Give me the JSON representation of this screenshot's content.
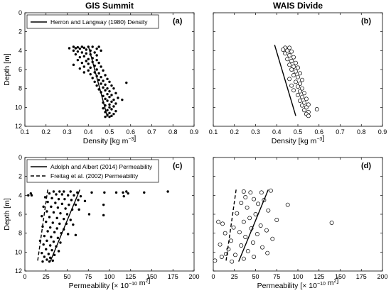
{
  "chart_data": [
    {
      "panel": "a",
      "type": "scatter",
      "title": "GIS Summit",
      "panel_label": "(a)",
      "xlabel": "Density [kg m⁻³]",
      "ylabel": "Depth [m]",
      "xlim": [
        0.1,
        0.9
      ],
      "ylim": [
        0,
        12
      ],
      "y_inverted": true,
      "xticks": [
        "0.1",
        "0.2",
        "0.3",
        "0.4",
        "0.5",
        "0.6",
        "0.7",
        "0.8",
        "0.9"
      ],
      "yticks": [
        "0",
        "2",
        "4",
        "6",
        "8",
        "10",
        "12"
      ],
      "marker": "filled",
      "legend": [
        {
          "label": "Herron and Langway (1980) Density",
          "style": "solid"
        }
      ],
      "lines": [
        {
          "style": "solid",
          "points": [
            [
              0.4,
              3.5
            ],
            [
              0.49,
              11.0
            ]
          ]
        }
      ],
      "points": [
        [
          0.33,
          3.6
        ],
        [
          0.35,
          3.65
        ],
        [
          0.37,
          3.6
        ],
        [
          0.4,
          3.6
        ],
        [
          0.42,
          3.6
        ],
        [
          0.45,
          3.6
        ],
        [
          0.38,
          3.7
        ],
        [
          0.34,
          3.75
        ],
        [
          0.31,
          3.75
        ],
        [
          0.36,
          3.8
        ],
        [
          0.44,
          3.8
        ],
        [
          0.39,
          3.9
        ],
        [
          0.33,
          4.0
        ],
        [
          0.41,
          4.0
        ],
        [
          0.46,
          4.0
        ],
        [
          0.35,
          4.1
        ],
        [
          0.37,
          4.2
        ],
        [
          0.43,
          4.2
        ],
        [
          0.39,
          4.3
        ],
        [
          0.34,
          4.4
        ],
        [
          0.41,
          4.4
        ],
        [
          0.44,
          4.5
        ],
        [
          0.38,
          4.6
        ],
        [
          0.36,
          4.7
        ],
        [
          0.42,
          4.8
        ],
        [
          0.4,
          4.9
        ],
        [
          0.35,
          5.0
        ],
        [
          0.44,
          5.0
        ],
        [
          0.39,
          5.1
        ],
        [
          0.42,
          5.2
        ],
        [
          0.37,
          5.3
        ],
        [
          0.45,
          5.3
        ],
        [
          0.4,
          5.4
        ],
        [
          0.33,
          5.5
        ],
        [
          0.43,
          5.6
        ],
        [
          0.38,
          5.7
        ],
        [
          0.46,
          5.7
        ],
        [
          0.41,
          5.8
        ],
        [
          0.36,
          5.9
        ],
        [
          0.44,
          6.0
        ],
        [
          0.4,
          6.1
        ],
        [
          0.47,
          6.1
        ],
        [
          0.38,
          6.3
        ],
        [
          0.43,
          6.3
        ],
        [
          0.45,
          6.4
        ],
        [
          0.41,
          6.5
        ],
        [
          0.48,
          6.6
        ],
        [
          0.44,
          6.7
        ],
        [
          0.46,
          6.8
        ],
        [
          0.42,
          6.9
        ],
        [
          0.49,
          7.0
        ],
        [
          0.45,
          7.1
        ],
        [
          0.47,
          7.2
        ],
        [
          0.43,
          7.3
        ],
        [
          0.5,
          7.3
        ],
        [
          0.58,
          7.4
        ],
        [
          0.46,
          7.5
        ],
        [
          0.48,
          7.6
        ],
        [
          0.44,
          7.7
        ],
        [
          0.51,
          7.7
        ],
        [
          0.47,
          7.9
        ],
        [
          0.49,
          8.0
        ],
        [
          0.52,
          8.0
        ],
        [
          0.45,
          8.1
        ],
        [
          0.48,
          8.2
        ],
        [
          0.5,
          8.3
        ],
        [
          0.46,
          8.4
        ],
        [
          0.53,
          8.5
        ],
        [
          0.49,
          8.6
        ],
        [
          0.51,
          8.7
        ],
        [
          0.47,
          8.8
        ],
        [
          0.5,
          8.9
        ],
        [
          0.54,
          9.0
        ],
        [
          0.48,
          9.1
        ],
        [
          0.52,
          9.2
        ],
        [
          0.56,
          9.2
        ],
        [
          0.49,
          9.3
        ],
        [
          0.51,
          9.4
        ],
        [
          0.47,
          9.5
        ],
        [
          0.53,
          9.6
        ],
        [
          0.5,
          9.7
        ],
        [
          0.48,
          9.8
        ],
        [
          0.52,
          9.9
        ],
        [
          0.5,
          10.0
        ],
        [
          0.47,
          10.1
        ],
        [
          0.51,
          10.2
        ],
        [
          0.49,
          10.3
        ],
        [
          0.53,
          10.4
        ],
        [
          0.48,
          10.5
        ],
        [
          0.5,
          10.6
        ],
        [
          0.52,
          10.7
        ],
        [
          0.49,
          10.8
        ],
        [
          0.51,
          10.9
        ],
        [
          0.48,
          11.0
        ],
        [
          0.5,
          11.0
        ]
      ]
    },
    {
      "panel": "b",
      "type": "scatter",
      "title": "WAIS Divide",
      "panel_label": "(b)",
      "xlabel": "Density [kg m⁻³]",
      "ylabel": "",
      "xlim": [
        0.1,
        0.9
      ],
      "ylim": [
        0,
        12
      ],
      "y_inverted": true,
      "xticks": [
        "0.1",
        "0.2",
        "0.3",
        "0.4",
        "0.5",
        "0.6",
        "0.7",
        "0.8",
        "0.9"
      ],
      "yticks": [],
      "marker": "open",
      "legend": [],
      "lines": [
        {
          "style": "solid",
          "points": [
            [
              0.39,
              3.4
            ],
            [
              0.49,
              10.9
            ]
          ]
        }
      ],
      "points": [
        [
          0.44,
          3.7
        ],
        [
          0.46,
          3.7
        ],
        [
          0.43,
          3.9
        ],
        [
          0.45,
          4.0
        ],
        [
          0.47,
          4.1
        ],
        [
          0.44,
          4.3
        ],
        [
          0.46,
          4.5
        ],
        [
          0.48,
          4.7
        ],
        [
          0.45,
          4.9
        ],
        [
          0.47,
          5.1
        ],
        [
          0.49,
          5.3
        ],
        [
          0.46,
          5.5
        ],
        [
          0.48,
          5.7
        ],
        [
          0.5,
          5.8
        ],
        [
          0.47,
          6.0
        ],
        [
          0.49,
          6.2
        ],
        [
          0.51,
          6.4
        ],
        [
          0.48,
          6.6
        ],
        [
          0.5,
          6.8
        ],
        [
          0.46,
          7.0
        ],
        [
          0.52,
          7.1
        ],
        [
          0.49,
          7.3
        ],
        [
          0.51,
          7.5
        ],
        [
          0.47,
          7.7
        ],
        [
          0.5,
          7.8
        ],
        [
          0.52,
          8.0
        ],
        [
          0.48,
          8.2
        ],
        [
          0.51,
          8.3
        ],
        [
          0.53,
          8.5
        ],
        [
          0.5,
          8.7
        ],
        [
          0.52,
          8.9
        ],
        [
          0.54,
          9.1
        ],
        [
          0.51,
          9.3
        ],
        [
          0.53,
          9.5
        ],
        [
          0.55,
          9.7
        ],
        [
          0.52,
          9.8
        ],
        [
          0.54,
          10.0
        ],
        [
          0.59,
          10.2
        ],
        [
          0.53,
          10.3
        ],
        [
          0.55,
          10.5
        ],
        [
          0.54,
          10.7
        ],
        [
          0.55,
          10.9
        ]
      ]
    },
    {
      "panel": "c",
      "type": "scatter",
      "title": "",
      "panel_label": "(c)",
      "xlabel": "Permeability [× 10⁻¹⁰ m²]",
      "ylabel": "Depth [m]",
      "xlim": [
        0,
        200
      ],
      "ylim": [
        0,
        12
      ],
      "y_inverted": true,
      "xticks": [
        "0",
        "25",
        "50",
        "75",
        "100",
        "125",
        "150",
        "175",
        "200"
      ],
      "yticks": [
        "0",
        "2",
        "4",
        "6",
        "8",
        "10",
        "12"
      ],
      "marker": "filled",
      "legend": [
        {
          "label": "Adolph and Albert (2014) Permeability",
          "style": "solid"
        },
        {
          "label": "Freitag et al. (2002) Permeability",
          "style": "dashed"
        }
      ],
      "lines": [
        {
          "style": "solid",
          "points": [
            [
              65,
              3.4
            ],
            [
              30,
              11.0
            ]
          ]
        },
        {
          "style": "dashed",
          "points": [
            [
              27,
              3.4
            ],
            [
              15,
              11.0
            ]
          ]
        }
      ],
      "points": [
        [
          4,
          4.0
        ],
        [
          7,
          3.8
        ],
        [
          8,
          4.0
        ],
        [
          34,
          3.6
        ],
        [
          41,
          3.6
        ],
        [
          46,
          3.6
        ],
        [
          54,
          3.6
        ],
        [
          62,
          3.7
        ],
        [
          79,
          3.7
        ],
        [
          94,
          3.7
        ],
        [
          108,
          3.7
        ],
        [
          116,
          3.7
        ],
        [
          120,
          3.6
        ],
        [
          122,
          3.8
        ],
        [
          141,
          3.7
        ],
        [
          169,
          3.6
        ],
        [
          29,
          3.8
        ],
        [
          37,
          3.9
        ],
        [
          44,
          3.9
        ],
        [
          51,
          4.0
        ],
        [
          58,
          4.0
        ],
        [
          66,
          4.1
        ],
        [
          117,
          4.1
        ],
        [
          24,
          4.2
        ],
        [
          32,
          4.3
        ],
        [
          40,
          4.4
        ],
        [
          47,
          4.4
        ],
        [
          55,
          4.5
        ],
        [
          63,
          4.5
        ],
        [
          71,
          4.6
        ],
        [
          27,
          4.7
        ],
        [
          36,
          4.8
        ],
        [
          44,
          4.9
        ],
        [
          52,
          5.0
        ],
        [
          60,
          5.0
        ],
        [
          93,
          5.0
        ],
        [
          22,
          5.2
        ],
        [
          31,
          5.2
        ],
        [
          39,
          5.3
        ],
        [
          48,
          5.4
        ],
        [
          56,
          5.5
        ],
        [
          64,
          5.5
        ],
        [
          26,
          5.7
        ],
        [
          34,
          5.8
        ],
        [
          42,
          5.9
        ],
        [
          50,
          6.0
        ],
        [
          76,
          6.0
        ],
        [
          93,
          6.1
        ],
        [
          20,
          6.2
        ],
        [
          29,
          6.3
        ],
        [
          38,
          6.4
        ],
        [
          46,
          6.5
        ],
        [
          54,
          6.6
        ],
        [
          25,
          6.8
        ],
        [
          33,
          6.9
        ],
        [
          41,
          7.0
        ],
        [
          49,
          7.0
        ],
        [
          57,
          7.1
        ],
        [
          21,
          7.3
        ],
        [
          30,
          7.4
        ],
        [
          38,
          7.5
        ],
        [
          46,
          7.6
        ],
        [
          27,
          7.8
        ],
        [
          35,
          7.9
        ],
        [
          43,
          8.0
        ],
        [
          51,
          8.1
        ],
        [
          60,
          8.2
        ],
        [
          23,
          8.3
        ],
        [
          31,
          8.4
        ],
        [
          39,
          8.5
        ],
        [
          18,
          8.8
        ],
        [
          26,
          8.8
        ],
        [
          34,
          8.9
        ],
        [
          42,
          9.0
        ],
        [
          22,
          9.2
        ],
        [
          30,
          9.3
        ],
        [
          37,
          9.4
        ],
        [
          25,
          9.7
        ],
        [
          32,
          9.8
        ],
        [
          40,
          9.9
        ],
        [
          20,
          10.1
        ],
        [
          28,
          10.2
        ],
        [
          35,
          10.3
        ],
        [
          23,
          10.5
        ],
        [
          30,
          10.6
        ],
        [
          26,
          10.8
        ],
        [
          33,
          10.9
        ],
        [
          21,
          11.0
        ],
        [
          29,
          11.0
        ]
      ]
    },
    {
      "panel": "d",
      "type": "scatter",
      "title": "",
      "panel_label": "(d)",
      "xlabel": "Permeability [× 10⁻¹⁰ m²]",
      "ylabel": "",
      "xlim": [
        0,
        200
      ],
      "ylim": [
        0,
        12
      ],
      "y_inverted": true,
      "xticks": [
        "0",
        "25",
        "50",
        "75",
        "100",
        "125",
        "150",
        "175",
        "200"
      ],
      "yticks": [],
      "marker": "open",
      "legend": [],
      "lines": [
        {
          "style": "solid",
          "points": [
            [
              65,
              3.4
            ],
            [
              30,
              11.0
            ]
          ]
        },
        {
          "style": "dashed",
          "points": [
            [
              27,
              3.4
            ],
            [
              15,
              11.0
            ]
          ]
        }
      ],
      "points": [
        [
          36,
          3.6
        ],
        [
          44,
          3.7
        ],
        [
          57,
          3.7
        ],
        [
          68,
          3.5
        ],
        [
          38,
          4.2
        ],
        [
          48,
          4.4
        ],
        [
          60,
          4.5
        ],
        [
          33,
          4.8
        ],
        [
          53,
          4.9
        ],
        [
          88,
          5.0
        ],
        [
          40,
          5.3
        ],
        [
          65,
          5.6
        ],
        [
          28,
          5.9
        ],
        [
          50,
          6.0
        ],
        [
          43,
          6.4
        ],
        [
          75,
          6.6
        ],
        [
          36,
          6.8
        ],
        [
          6,
          6.8
        ],
        [
          11,
          7.0
        ],
        [
          140,
          6.9
        ],
        [
          56,
          7.2
        ],
        [
          24,
          7.4
        ],
        [
          45,
          7.5
        ],
        [
          63,
          7.7
        ],
        [
          31,
          7.9
        ],
        [
          14,
          8.0
        ],
        [
          52,
          8.1
        ],
        [
          38,
          8.4
        ],
        [
          70,
          8.6
        ],
        [
          21,
          8.8
        ],
        [
          47,
          9.0
        ],
        [
          8,
          9.2
        ],
        [
          33,
          9.3
        ],
        [
          58,
          9.5
        ],
        [
          18,
          9.7
        ],
        [
          41,
          9.9
        ],
        [
          64,
          10.1
        ],
        [
          26,
          10.3
        ],
        [
          10,
          10.5
        ],
        [
          36,
          10.7
        ],
        [
          2,
          10.9
        ],
        [
          22,
          11.0
        ],
        [
          15,
          10.2
        ],
        [
          48,
          10.5
        ]
      ]
    }
  ]
}
